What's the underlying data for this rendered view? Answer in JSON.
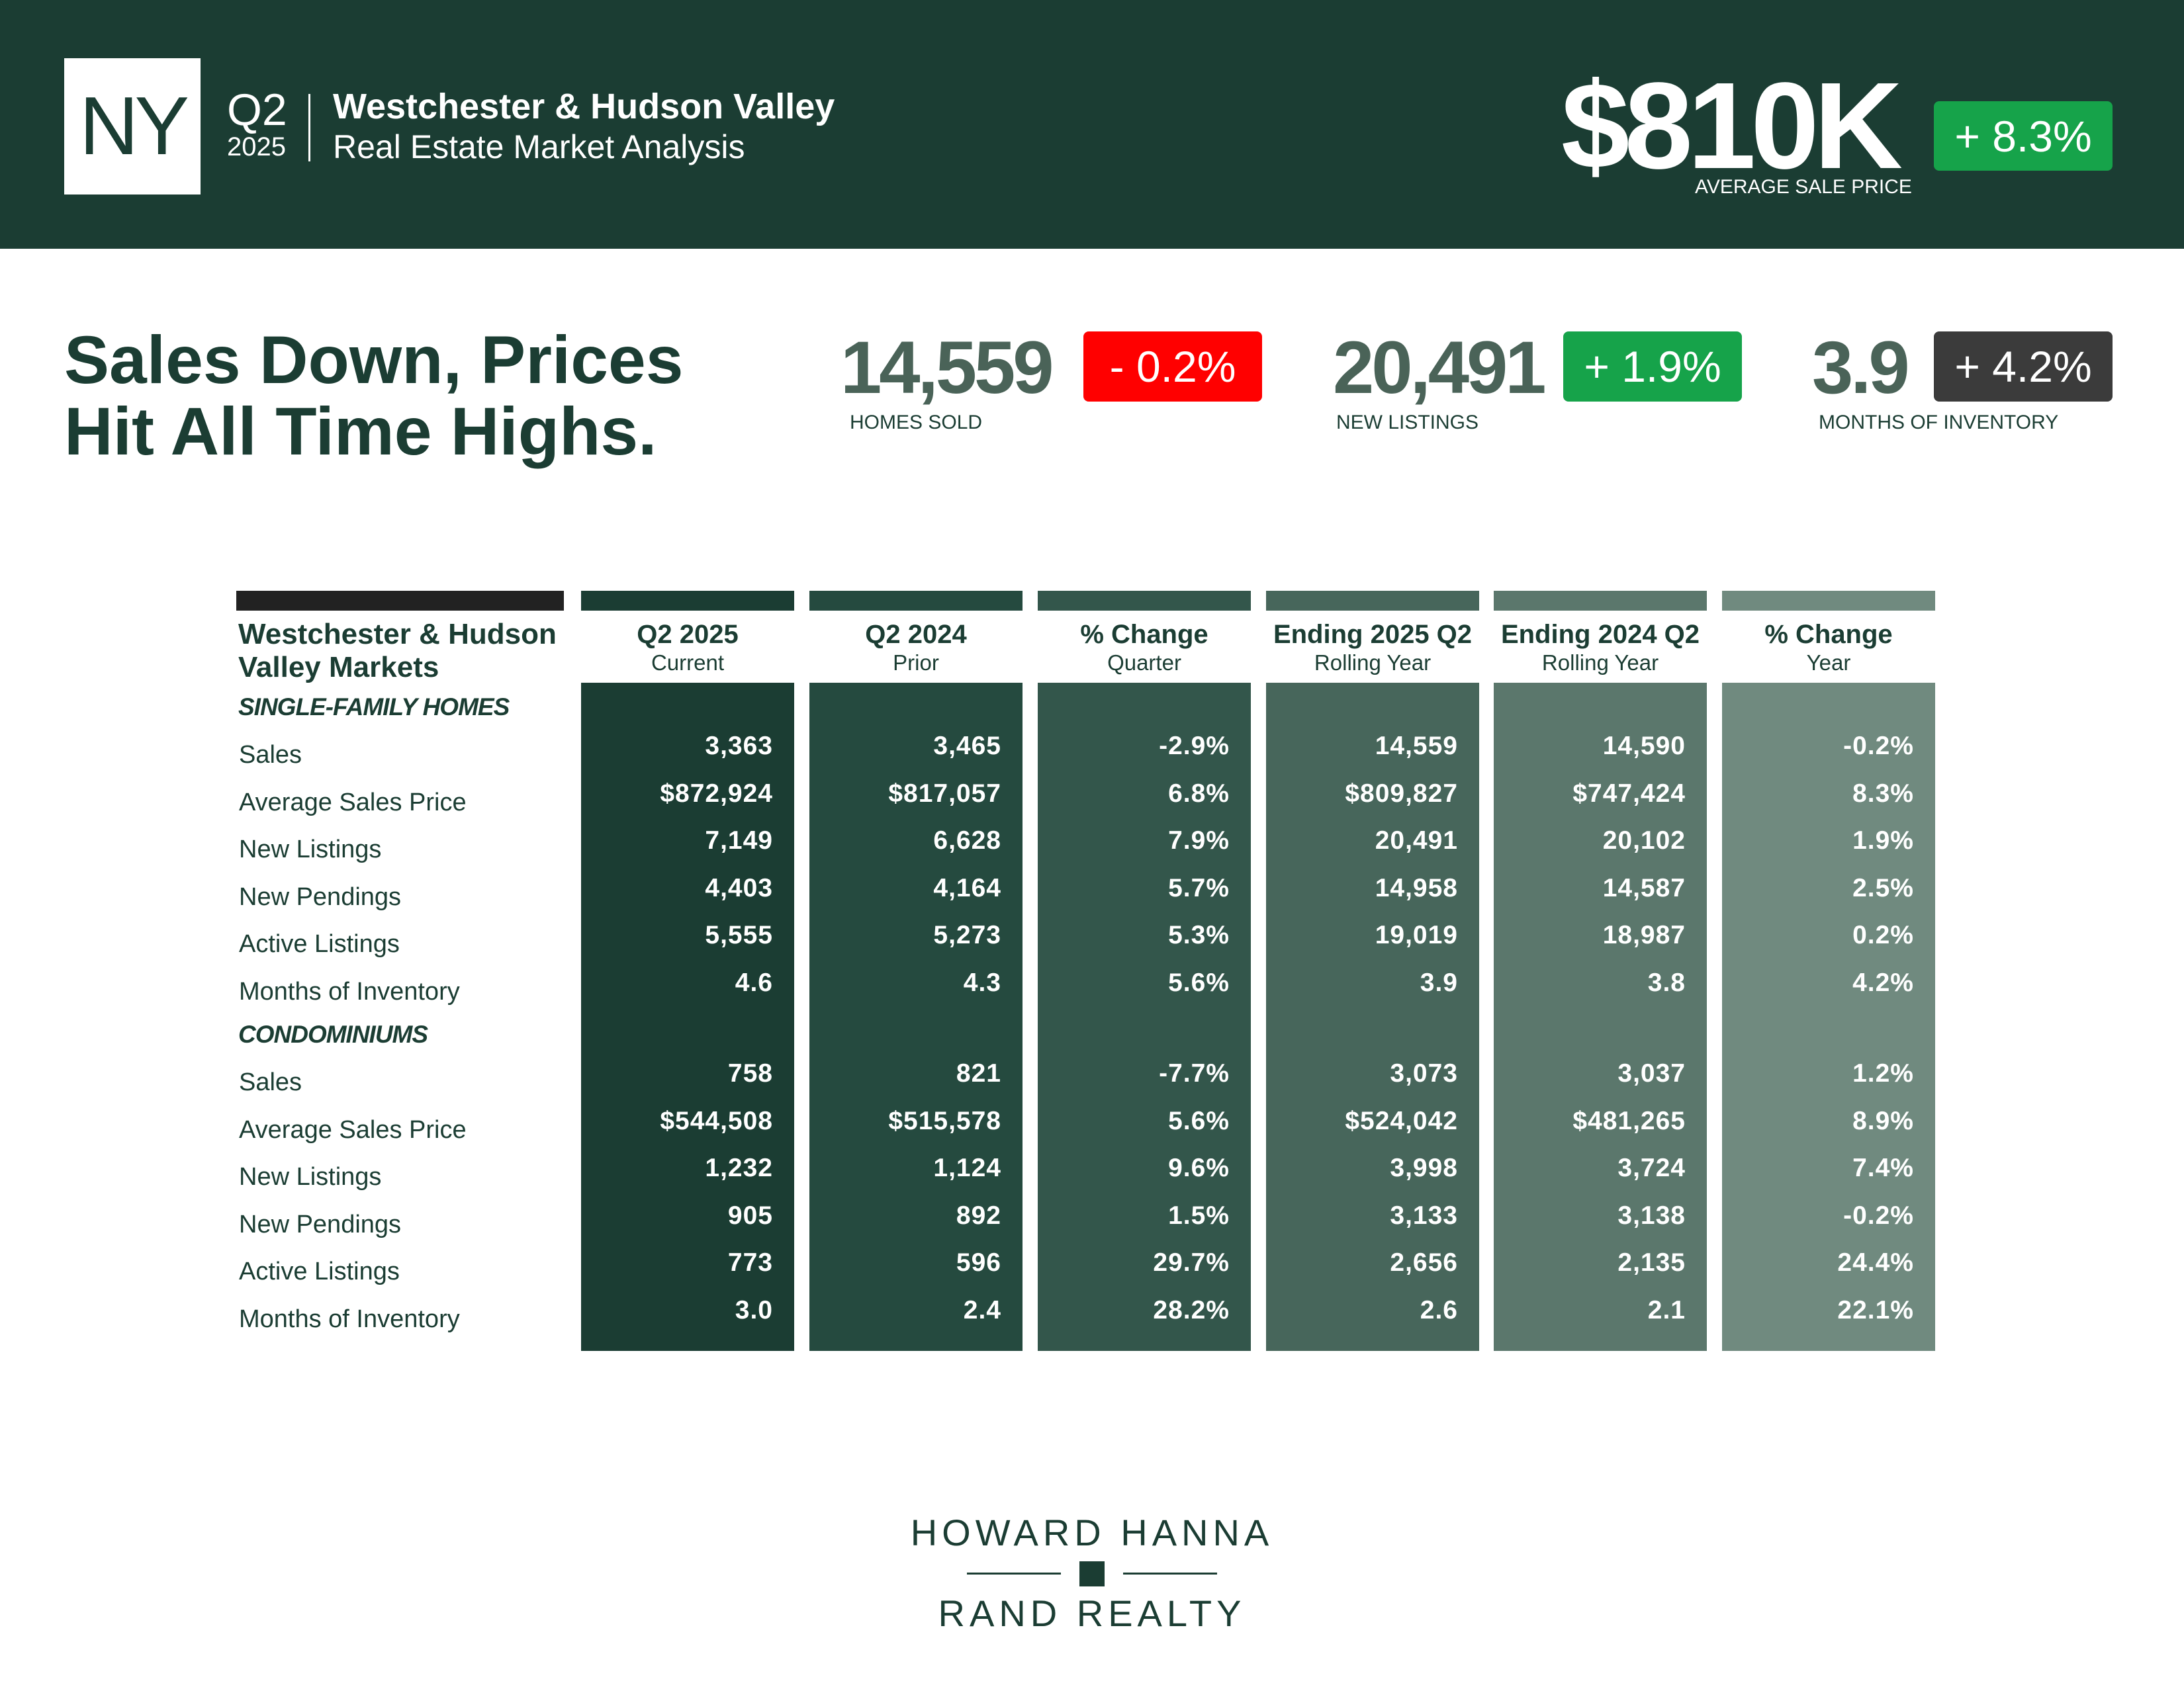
{
  "header": {
    "state": "NY",
    "quarter": "Q2",
    "year": "2025",
    "region": "Westchester & Hudson Valley",
    "subtitle": "Real Estate Market Analysis",
    "avg_price": "$810K",
    "avg_price_label": "AVERAGE SALE PRICE",
    "avg_price_change": "+ 8.3%"
  },
  "headline": {
    "line1": "Sales Down, Prices",
    "line2": "Hit All Time Highs."
  },
  "kpis": [
    {
      "value": "14,559",
      "label": "HOMES SOLD",
      "change": "- 0.2%",
      "color": "#ff0000"
    },
    {
      "value": "20,491",
      "label": "NEW LISTINGS",
      "change": "+ 1.9%",
      "color": "#16a34a"
    },
    {
      "value": "3.9",
      "label": "MONTHS OF INVENTORY",
      "change": "+ 4.2%",
      "color": "#3b3b3b"
    }
  ],
  "table": {
    "market_title_1": "Westchester & Hudson",
    "market_title_2": "Valley Markets",
    "columns": [
      {
        "h1": "Q2 2025",
        "h2": "Current",
        "color": "#1b3d33"
      },
      {
        "h1": "Q2 2024",
        "h2": "Prior",
        "color": "#254a3f"
      },
      {
        "h1": "% Change",
        "h2": "Quarter",
        "color": "#33564b"
      },
      {
        "h1": "Ending 2025 Q2",
        "h2": "Rolling Year",
        "color": "#47665b"
      },
      {
        "h1": "Ending 2024 Q2",
        "h2": "Rolling Year",
        "color": "#5b776c"
      },
      {
        "h1": "% Change",
        "h2": "Year",
        "color": "#708a7f"
      }
    ],
    "sections": [
      {
        "title": "SINGLE-FAMILY HOMES",
        "rows": [
          {
            "label": "Sales",
            "values": [
              "3,363",
              "3,465",
              "-2.9%",
              "14,559",
              "14,590",
              "-0.2%"
            ]
          },
          {
            "label": "Average Sales Price",
            "values": [
              "$872,924",
              "$817,057",
              "6.8%",
              "$809,827",
              "$747,424",
              "8.3%"
            ]
          },
          {
            "label": "New Listings",
            "values": [
              "7,149",
              "6,628",
              "7.9%",
              "20,491",
              "20,102",
              "1.9%"
            ]
          },
          {
            "label": "New Pendings",
            "values": [
              "4,403",
              "4,164",
              "5.7%",
              "14,958",
              "14,587",
              "2.5%"
            ]
          },
          {
            "label": "Active Listings",
            "values": [
              "5,555",
              "5,273",
              "5.3%",
              "19,019",
              "18,987",
              "0.2%"
            ]
          },
          {
            "label": "Months of Inventory",
            "values": [
              "4.6",
              "4.3",
              "5.6%",
              "3.9",
              "3.8",
              "4.2%"
            ]
          }
        ]
      },
      {
        "title": "CONDOMINIUMS",
        "rows": [
          {
            "label": "Sales",
            "values": [
              "758",
              "821",
              "-7.7%",
              "3,073",
              "3,037",
              "1.2%"
            ]
          },
          {
            "label": "Average Sales Price",
            "values": [
              "$544,508",
              "$515,578",
              "5.6%",
              "$524,042",
              "$481,265",
              "8.9%"
            ]
          },
          {
            "label": "New Listings",
            "values": [
              "1,232",
              "1,124",
              "9.6%",
              "3,998",
              "3,724",
              "7.4%"
            ]
          },
          {
            "label": "New Pendings",
            "values": [
              "905",
              "892",
              "1.5%",
              "3,133",
              "3,138",
              "-0.2%"
            ]
          },
          {
            "label": "Active Listings",
            "values": [
              "773",
              "596",
              "29.7%",
              "2,656",
              "2,135",
              "24.4%"
            ]
          },
          {
            "label": "Months of Inventory",
            "values": [
              "3.0",
              "2.4",
              "28.2%",
              "2.6",
              "2.1",
              "22.1%"
            ]
          }
        ]
      }
    ]
  },
  "footer": {
    "brand_line1": "HOWARD HANNA",
    "brand_line2": "RAND REALTY"
  }
}
